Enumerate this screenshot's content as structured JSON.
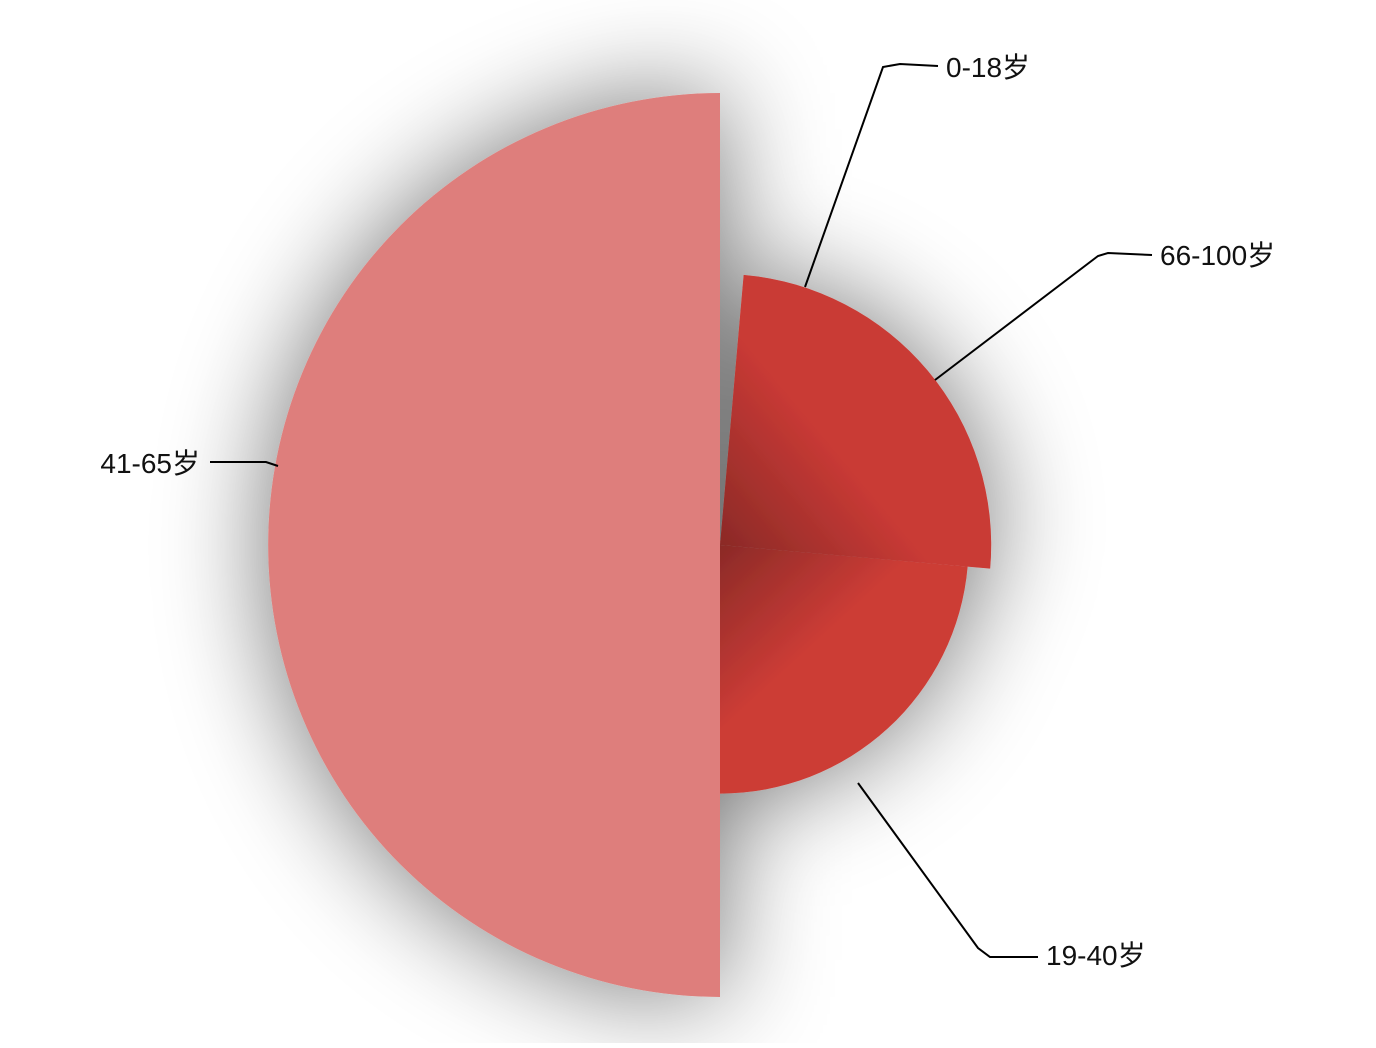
{
  "chart_data": {
    "type": "pie",
    "variant": "nightingale-rose",
    "start_angle_deg": 90,
    "direction": "clockwise",
    "value_axis": {
      "min": 0,
      "max": 100
    },
    "title": "",
    "legend": "none",
    "grid": false,
    "categories": [
      "0-18岁",
      "66-100岁",
      "19-40岁",
      "41-65岁"
    ],
    "series": [
      {
        "values": [
          1,
          60,
          55,
          100
        ],
        "slice_angles_deg": [
          5,
          90,
          85,
          180
        ],
        "colors": [
          "#c93a35",
          "#c93a35",
          "#cc3c36",
          "#de7e7b"
        ],
        "gradient_shade": "#8b2a27"
      }
    ]
  }
}
